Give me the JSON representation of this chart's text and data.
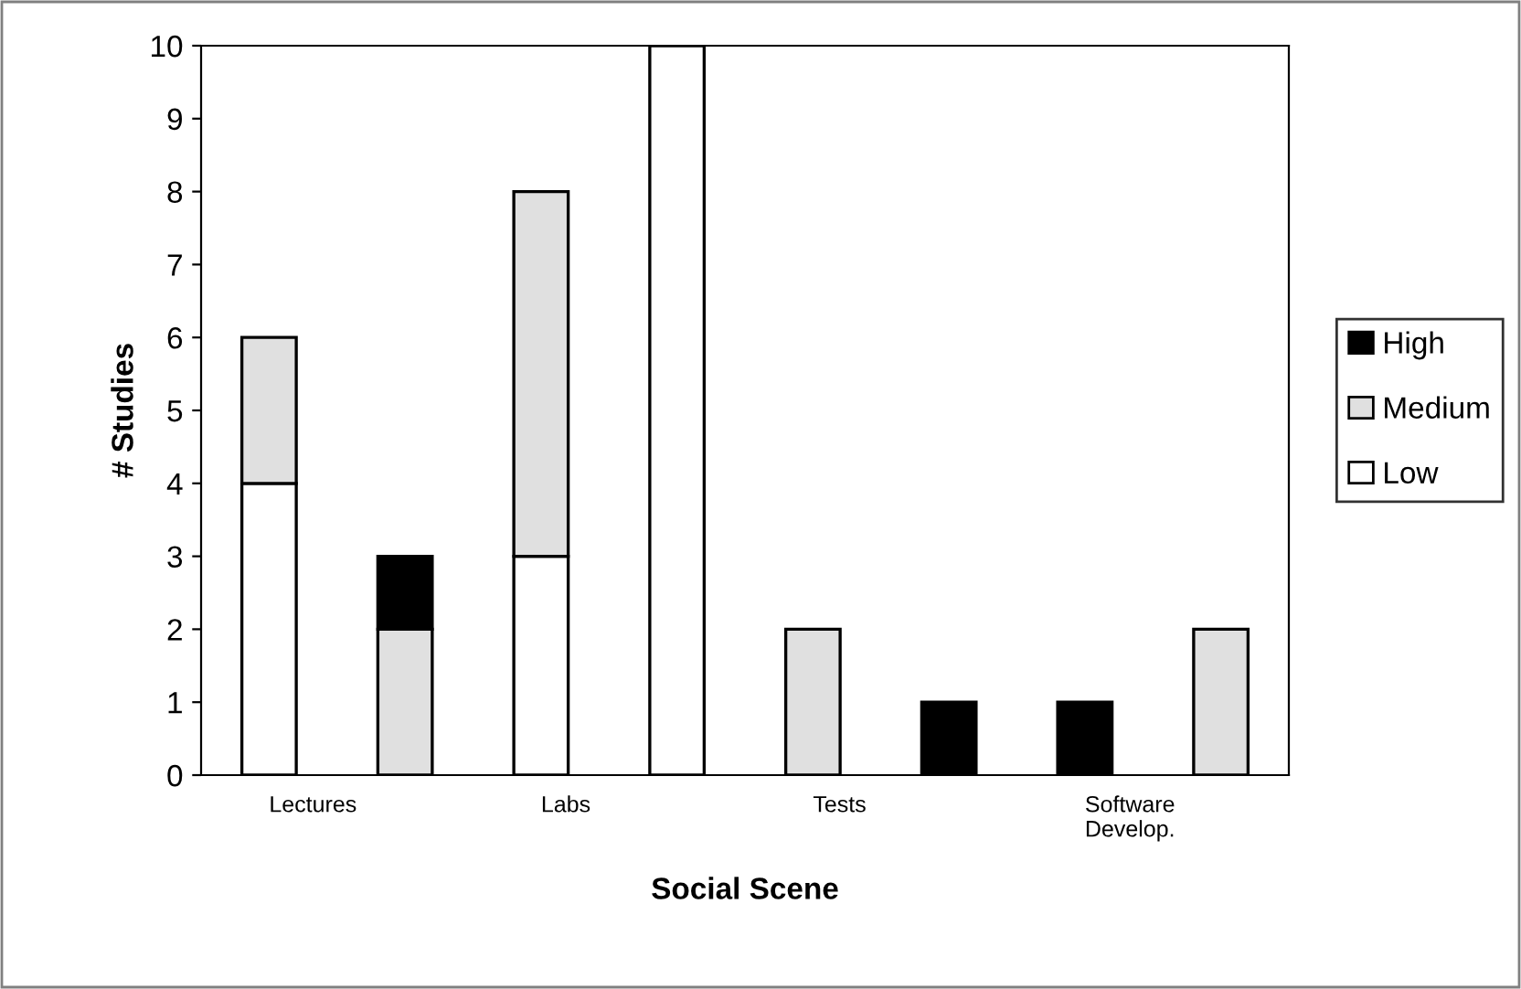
{
  "chart_data": {
    "type": "bar",
    "stacked": true,
    "xlabel": "Social Scene",
    "ylabel": "# Studies",
    "categories": [
      "Lectures",
      null,
      "Labs",
      null,
      "Tests",
      null,
      "Software\nDevelop.",
      null
    ],
    "series": [
      {
        "name": "Low",
        "color": "#ffffff",
        "values": [
          4,
          0,
          3,
          10,
          0,
          0,
          0,
          0
        ]
      },
      {
        "name": "Medium",
        "color": "#e0e0e0",
        "values": [
          2,
          2,
          5,
          0,
          2,
          0,
          0,
          2
        ]
      },
      {
        "name": "High",
        "color": "#000000",
        "values": [
          0,
          1,
          0,
          0,
          0,
          1,
          1,
          0
        ]
      }
    ],
    "ylim": [
      0,
      10
    ],
    "yticks": [
      0,
      1,
      2,
      3,
      4,
      5,
      6,
      7,
      8,
      9,
      10
    ],
    "grid": false,
    "legend": "right"
  }
}
